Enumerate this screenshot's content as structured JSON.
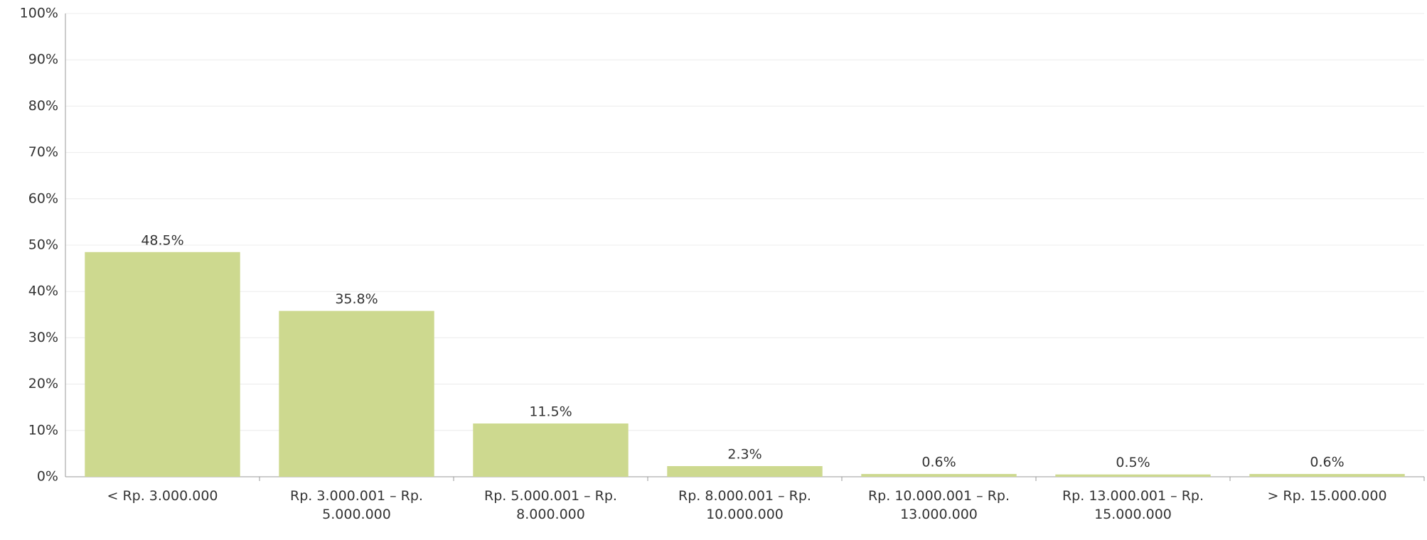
{
  "chart_data": {
    "type": "bar",
    "categories": [
      "< Rp. 3.000.000",
      "Rp. 3.000.001 – Rp. 5.000.000",
      "Rp. 5.000.001 – Rp. 8.000.000",
      "Rp. 8.000.001 – Rp. 10.000.000",
      "Rp. 10.000.001 – Rp. 13.000.000",
      "Rp. 13.000.001 – Rp. 15.000.000",
      "> Rp. 15.000.000"
    ],
    "values": [
      48.5,
      35.8,
      11.5,
      2.3,
      0.6,
      0.5,
      0.6
    ],
    "value_labels": [
      "48.5%",
      "35.8%",
      "11.5%",
      "2.3%",
      "0.6%",
      "0.5%",
      "0.6%"
    ],
    "color": "#cdd98f",
    "ylim": [
      0,
      100
    ],
    "yticks": [
      {
        "value": 0,
        "label": "0%"
      },
      {
        "value": 10,
        "label": "10%"
      },
      {
        "value": 20,
        "label": "20%"
      },
      {
        "value": 30,
        "label": "30%"
      },
      {
        "value": 40,
        "label": "40%"
      },
      {
        "value": 50,
        "label": "50%"
      },
      {
        "value": 60,
        "label": "60%"
      },
      {
        "value": 70,
        "label": "70%"
      },
      {
        "value": 80,
        "label": "80%"
      },
      {
        "value": 90,
        "label": "90%"
      },
      {
        "value": 100,
        "label": "100%"
      }
    ],
    "grid": true
  }
}
